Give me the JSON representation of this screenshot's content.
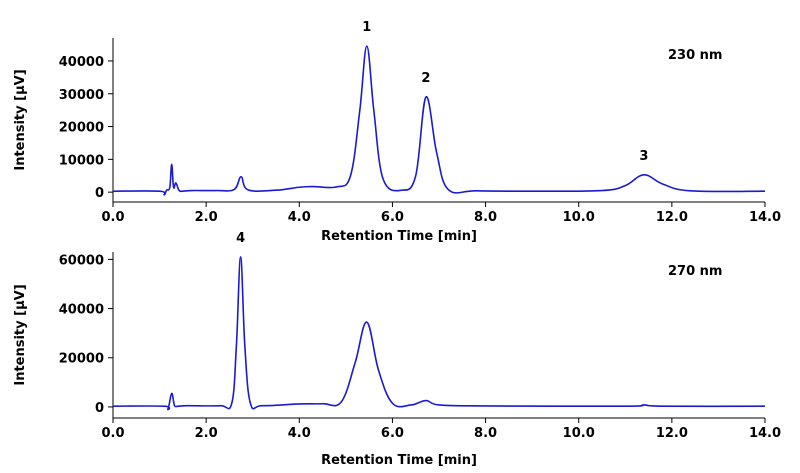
{
  "chart_data": [
    {
      "type": "line",
      "xlabel": "Retention Time [min]",
      "ylabel": "Intensity [µV]",
      "wavelength_label": "230 nm",
      "xlim": [
        0,
        14
      ],
      "ylim": [
        -3000,
        47000
      ],
      "x_ticks": [
        "0.0",
        "2.0",
        "4.0",
        "6.0",
        "8.0",
        "10.0",
        "12.0",
        "14.0"
      ],
      "x_tick_values": [
        0,
        2,
        4,
        6,
        8,
        10,
        12,
        14
      ],
      "y_ticks": [
        "0",
        "10000",
        "20000",
        "30000",
        "40000"
      ],
      "y_tick_values": [
        0,
        10000,
        20000,
        30000,
        40000
      ],
      "line_color": "#1a1ad4",
      "series": [
        {
          "x": [
            0,
            1.0,
            1.1,
            1.15,
            1.22,
            1.26,
            1.3,
            1.35,
            1.42,
            1.5,
            1.7,
            2.2,
            2.6,
            2.75,
            2.9,
            3.5,
            4.0,
            4.3,
            4.8,
            5.1,
            5.3,
            5.45,
            5.6,
            5.8,
            6.2,
            6.5,
            6.72,
            6.95,
            7.2,
            7.8,
            9.0,
            10.5,
            11.0,
            11.4,
            11.8,
            12.4,
            14.0
          ],
          "y": [
            300,
            300,
            -800,
            600,
            1500,
            8500,
            1500,
            2800,
            500,
            300,
            500,
            500,
            800,
            4700,
            700,
            600,
            1500,
            1700,
            1600,
            5000,
            25000,
            44500,
            25000,
            4000,
            600,
            5000,
            29000,
            12000,
            800,
            400,
            300,
            500,
            2000,
            5300,
            2500,
            400,
            300
          ],
          "peak_labels": [
            {
              "label": "1",
              "x": 5.45,
              "y": 44500
            },
            {
              "label": "2",
              "x": 6.72,
              "y": 29000
            },
            {
              "label": "3",
              "x": 11.4,
              "y": 5300
            }
          ]
        }
      ]
    },
    {
      "type": "line",
      "xlabel": "Retention Time [min]",
      "ylabel": "Intensity [µV]",
      "wavelength_label": "270 nm",
      "xlim": [
        0,
        14
      ],
      "ylim": [
        -4500,
        63000
      ],
      "x_ticks": [
        "0.0",
        "2.0",
        "4.0",
        "6.0",
        "8.0",
        "10.0",
        "12.0",
        "14.0"
      ],
      "x_tick_values": [
        0,
        2,
        4,
        6,
        8,
        10,
        12,
        14
      ],
      "y_ticks": [
        "0",
        "20000",
        "40000",
        "60000"
      ],
      "y_tick_values": [
        0,
        20000,
        40000,
        60000
      ],
      "line_color": "#1a1ad4",
      "series": [
        {
          "x": [
            0,
            1.1,
            1.18,
            1.26,
            1.32,
            1.4,
            1.6,
            2.3,
            2.55,
            2.65,
            2.74,
            2.83,
            2.95,
            3.2,
            4.0,
            4.5,
            4.9,
            5.2,
            5.45,
            5.7,
            6.0,
            6.4,
            6.72,
            7.0,
            8.0,
            11.0,
            11.4,
            11.8,
            14.0
          ],
          "y": [
            300,
            300,
            -800,
            5500,
            600,
            300,
            500,
            500,
            1500,
            25000,
            61000,
            25000,
            1500,
            500,
            1200,
            1300,
            2000,
            18000,
            34500,
            15000,
            1500,
            800,
            2600,
            800,
            400,
            300,
            800,
            300,
            300
          ],
          "peak_labels": [
            {
              "label": "4",
              "x": 2.74,
              "y": 61000
            }
          ]
        }
      ]
    }
  ]
}
